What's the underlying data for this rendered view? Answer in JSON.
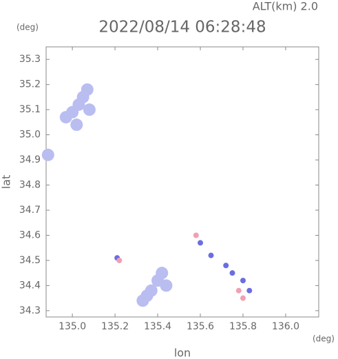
{
  "chart_data": {
    "type": "scatter",
    "title": "2022/08/14 06:28:48",
    "subtitle": "ALT(km) 2.0",
    "x_label": "lon",
    "y_label": "lat",
    "x_unit": "(deg)",
    "y_unit": "(deg)",
    "xlim": [
      134.877,
      136.155
    ],
    "ylim": [
      34.275,
      35.35
    ],
    "xticks": [
      {
        "value": 135,
        "label": "135.0"
      },
      135.2,
      135.4,
      135.6,
      135.8,
      {
        "value": 136,
        "label": "136.0"
      }
    ],
    "yticks": [
      34.3,
      34.4,
      34.5,
      34.6,
      34.7,
      34.8,
      34.9,
      {
        "value": 35,
        "label": "35.0"
      },
      35.1,
      35.2,
      35.3
    ],
    "series": [
      {
        "color": "#b9bdf0",
        "x": [
          134.97,
          135.0,
          135.03,
          135.05,
          135.07,
          135.08,
          135.02,
          134.886,
          135.33,
          135.37,
          135.4,
          135.42,
          135.35,
          135.44
        ],
        "y": [
          35.07,
          35.09,
          35.12,
          35.15,
          35.18,
          35.1,
          35.04,
          34.92,
          34.34,
          34.38,
          34.42,
          34.45,
          34.36,
          34.4
        ]
      },
      {
        "color": "#6a6ee0",
        "x": [
          135.6,
          135.65,
          135.72,
          135.75,
          135.8,
          135.83,
          135.21
        ],
        "y": [
          34.57,
          34.52,
          34.48,
          34.45,
          34.42,
          34.38,
          34.51
        ]
      },
      {
        "color": "#f0a0b4",
        "x": [
          135.58,
          135.78,
          135.8,
          135.22
        ],
        "y": [
          34.6,
          34.38,
          34.35,
          34.5
        ]
      }
    ]
  }
}
